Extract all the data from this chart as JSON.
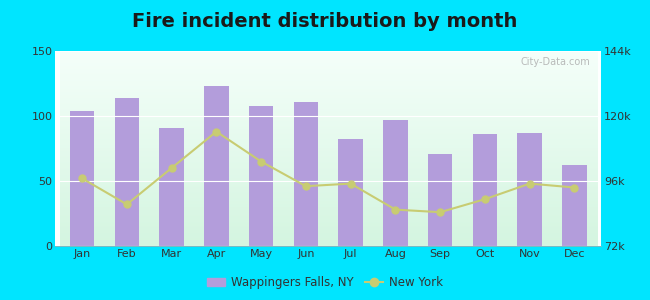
{
  "title": "Fire incident distribution by month",
  "months": [
    "Jan",
    "Feb",
    "Mar",
    "Apr",
    "May",
    "Jun",
    "Jul",
    "Aug",
    "Sep",
    "Oct",
    "Nov",
    "Dec"
  ],
  "bar_values": [
    104,
    114,
    91,
    123,
    108,
    111,
    82,
    97,
    71,
    86,
    87,
    62
  ],
  "line_values": [
    52,
    32,
    60,
    88,
    65,
    46,
    48,
    28,
    26,
    36,
    48,
    45
  ],
  "bar_color": "#b39ddb",
  "line_color": "#c8cc72",
  "line_marker": "o",
  "outer_background": "#00e5ff",
  "plot_bg_top": "#f5fffa",
  "plot_bg_bottom": "#d4f5e0",
  "ylim_left": [
    0,
    150
  ],
  "ylim_right": [
    72000,
    144000
  ],
  "yticks_left": [
    0,
    50,
    100,
    150
  ],
  "yticks_right": [
    72000,
    96000,
    120000,
    144000
  ],
  "ytick_labels_right": [
    "72k",
    "96k",
    "120k",
    "144k"
  ],
  "legend_label_bar": "Wappingers Falls, NY",
  "legend_label_line": "New York",
  "watermark": "City-Data.com",
  "title_fontsize": 14,
  "tick_fontsize": 8,
  "title_color": "#1a1a1a"
}
